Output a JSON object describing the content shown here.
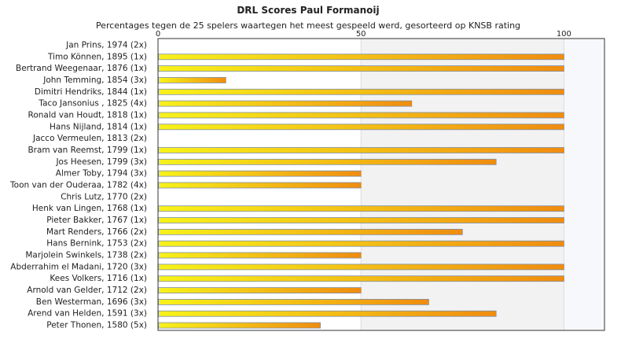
{
  "chart_data": {
    "type": "bar",
    "orientation": "horizontal",
    "title": "DRL Scores Paul Formanoij",
    "subtitle": "Percentages tegen de 25 spelers waartegen het meest gespeeld werd, gesorteerd op KNSB rating",
    "xlim": [
      0,
      110
    ],
    "xticks": [
      "0",
      "50",
      "100"
    ],
    "grid": true,
    "colors": {
      "bar_start": "#f7f21a",
      "bar_end": "#f08c10",
      "bar_border": "#7f8fa8",
      "band": "#f2f2f2"
    },
    "categories": [
      "Jan Prins, 1974 (2x)",
      "Timo Können, 1895 (1x)",
      "Bertrand Weegenaar, 1876 (1x)",
      "John Temming, 1854 (3x)",
      "Dimitri Hendriks, 1844 (1x)",
      "Taco Jansonius , 1825 (4x)",
      "Ronald van Houdt, 1818 (1x)",
      "Hans Nijland, 1814 (1x)",
      "Jacco Vermeulen, 1813 (2x)",
      "Bram van Reemst, 1799 (1x)",
      "Jos Heesen, 1799 (3x)",
      "Almer Toby, 1794 (3x)",
      "Toon van der Ouderaa, 1782 (4x)",
      "Chris Lutz, 1770 (2x)",
      "Henk van Lingen, 1768 (1x)",
      "Pieter Bakker, 1767 (1x)",
      "Mart Renders, 1766 (2x)",
      "Hans Bernink, 1753 (2x)",
      "Marjolein Swinkels, 1738 (2x)",
      "Abderrahim el Madani, 1720 (3x)",
      "Kees Volkers, 1716 (1x)",
      "Arnold van Gelder, 1712 (2x)",
      "Ben Westerman, 1696 (3x)",
      "Arend van Helden, 1591 (3x)",
      "Peter Thonen, 1580 (5x)"
    ],
    "values": [
      0,
      100,
      100,
      16.7,
      100,
      62.5,
      100,
      100,
      0,
      100,
      83.3,
      50,
      50,
      0,
      100,
      100,
      75,
      100,
      50,
      100,
      100,
      50,
      66.7,
      83.3,
      40
    ]
  }
}
